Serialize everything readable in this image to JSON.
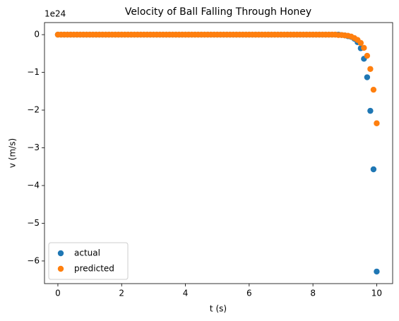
{
  "chart_data": {
    "type": "scatter",
    "title": "Velocity of Ball Falling Through Honey",
    "x_label": "t (s)",
    "y_label": "v (m/s)",
    "y_offset_label": "1e24",
    "x": [
      0,
      0.1,
      0.2,
      0.3,
      0.4,
      0.5,
      0.6,
      0.7,
      0.8,
      0.9,
      1,
      1.1,
      1.2,
      1.3,
      1.4,
      1.5,
      1.6,
      1.7,
      1.8,
      1.9,
      2,
      2.1,
      2.2,
      2.3,
      2.4,
      2.5,
      2.6,
      2.7,
      2.8,
      2.9,
      3,
      3.1,
      3.2,
      3.3,
      3.4,
      3.5,
      3.6,
      3.7,
      3.8,
      3.9,
      4,
      4.1,
      4.2,
      4.3,
      4.4,
      4.5,
      4.6,
      4.7,
      4.8,
      4.9,
      5,
      5.1,
      5.2,
      5.3,
      5.4,
      5.5,
      5.6,
      5.7,
      5.8,
      5.9,
      6,
      6.1,
      6.2,
      6.3,
      6.4,
      6.5,
      6.6,
      6.7,
      6.8,
      6.9,
      7,
      7.1,
      7.2,
      7.3,
      7.4,
      7.5,
      7.6,
      7.7,
      7.8,
      7.9,
      8,
      8.1,
      8.2,
      8.3,
      8.4,
      8.5,
      8.6,
      8.7,
      8.8,
      8.9,
      9,
      9.1,
      9.2,
      9.3,
      9.4,
      9.5,
      9.6,
      9.7,
      9.8,
      9.9,
      10
    ],
    "series": [
      {
        "name": "actual",
        "color": "#1f77b4",
        "values": [
          0,
          0,
          0,
          0,
          0,
          0,
          0,
          0,
          0,
          0,
          0,
          0,
          0,
          0,
          0,
          0,
          0,
          0,
          0,
          0,
          0,
          0,
          0,
          0,
          0,
          0,
          0,
          0,
          0,
          0,
          0,
          0,
          0,
          0,
          0,
          0,
          0,
          0,
          0,
          0,
          0,
          0,
          0,
          0,
          0,
          0,
          0,
          0,
          0,
          0,
          0,
          0,
          0,
          0,
          0,
          0,
          0,
          0,
          0,
          0,
          0,
          0,
          0,
          0,
          0,
          0,
          0,
          0,
          0,
          0,
          0,
          0,
          0,
          0,
          0,
          0,
          0,
          0,
          0,
          0,
          0,
          0,
          0,
          0,
          0,
          0,
          0,
          0,
          0,
          -0.01,
          -0.02,
          -0.04,
          -0.06,
          -0.11,
          -0.2,
          -0.36,
          -0.64,
          -1.13,
          -2.02,
          -3.57,
          -6.28
        ]
      },
      {
        "name": "predicted",
        "color": "#ff7f0e",
        "values": [
          0,
          0,
          0,
          0,
          0,
          0,
          0,
          0,
          0,
          0,
          0,
          0,
          0,
          0,
          0,
          0,
          0,
          0,
          0,
          0,
          0,
          0,
          0,
          0,
          0,
          0,
          0,
          0,
          0,
          0,
          0,
          0,
          0,
          0,
          0,
          0,
          0,
          0,
          0,
          0,
          0,
          0,
          0,
          0,
          0,
          0,
          0,
          0,
          0,
          0,
          0,
          0,
          0,
          0,
          0,
          0,
          0,
          0,
          0,
          0,
          0,
          0,
          0,
          0,
          0,
          0,
          0,
          0,
          0,
          0,
          0,
          0,
          0,
          0,
          0,
          0,
          0,
          0,
          0,
          0,
          0,
          0,
          0,
          0,
          0,
          0,
          0,
          0,
          -0.01,
          -0.01,
          -0.02,
          -0.03,
          -0.05,
          -0.09,
          -0.14,
          -0.22,
          -0.35,
          -0.56,
          -0.91,
          -1.46,
          -2.35
        ]
      }
    ],
    "xlim": [
      -0.42,
      10.5
    ],
    "xticks": [
      0,
      2,
      4,
      6,
      8,
      10
    ],
    "ylim": [
      -6.6,
      0.32
    ],
    "yticks": [
      0,
      -1,
      -2,
      -3,
      -4,
      -5,
      -6
    ],
    "grid": false,
    "legend": "lower left"
  }
}
